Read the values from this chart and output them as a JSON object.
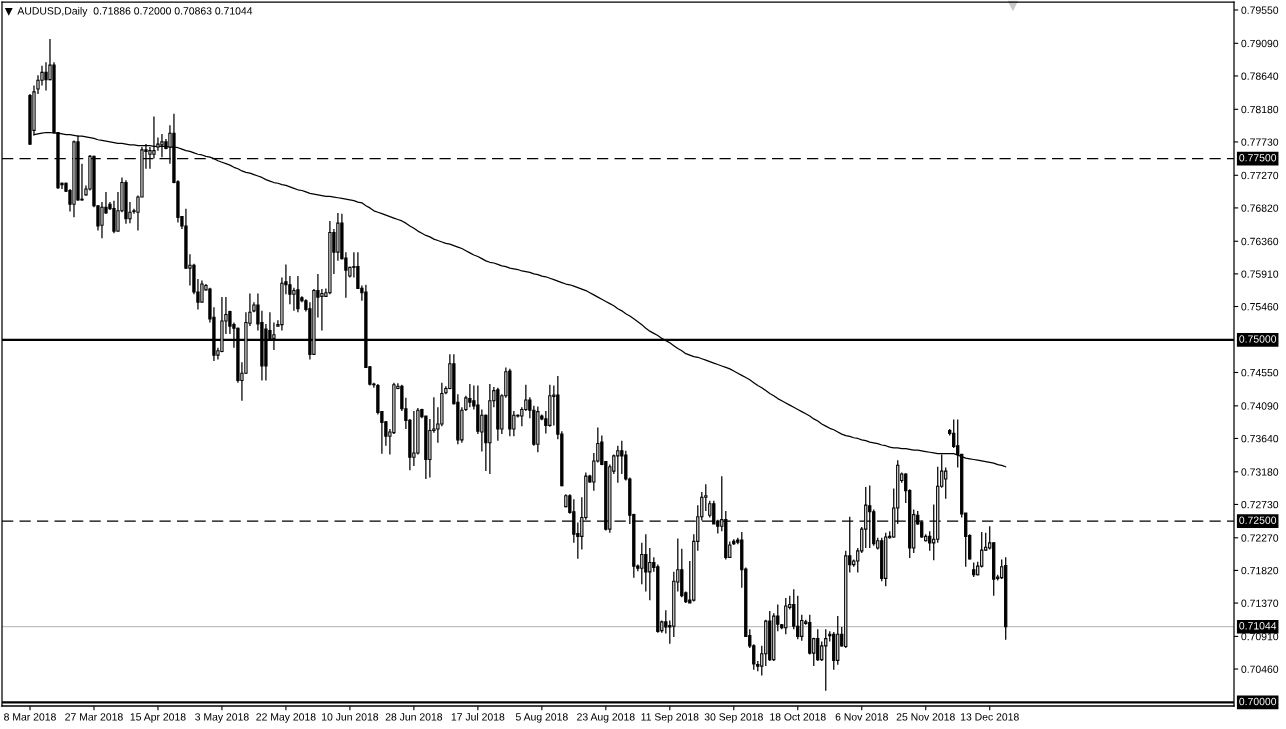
{
  "chart_data": {
    "type": "candlestick",
    "title": "AUDUSD,Daily  0.71886 0.72000 0.70863 0.71044",
    "categories": [
      "8 Mar 2018",
      null,
      null,
      null,
      null,
      null,
      null,
      null,
      null,
      null,
      null,
      null,
      null,
      null,
      null,
      null,
      "27 Mar 2018",
      null,
      null,
      null,
      null,
      null,
      null,
      null,
      null,
      null,
      null,
      null,
      null,
      null,
      null,
      null,
      "15 Apr 2018",
      null,
      null,
      null,
      null,
      null,
      null,
      null,
      null,
      null,
      null,
      null,
      null,
      null,
      null,
      null,
      "3 May 2018",
      null,
      null,
      null,
      null,
      null,
      null,
      null,
      null,
      null,
      null,
      null,
      null,
      null,
      null,
      null,
      "22 May 2018",
      null,
      null,
      null,
      null,
      null,
      null,
      null,
      null,
      null,
      null,
      null,
      null,
      null,
      null,
      null,
      "10 Jun 2018",
      null,
      null,
      null,
      null,
      null,
      null,
      null,
      null,
      null,
      null,
      null,
      null,
      null,
      null,
      null,
      "28 Jun 2018",
      null,
      null,
      null,
      null,
      null,
      null,
      null,
      null,
      null,
      null,
      null,
      null,
      null,
      null,
      null,
      "17 Jul 2018",
      null,
      null,
      null,
      null,
      null,
      null,
      null,
      null,
      null,
      null,
      null,
      null,
      null,
      null,
      null,
      "5 Aug 2018",
      null,
      null,
      null,
      null,
      null,
      null,
      null,
      null,
      null,
      null,
      null,
      null,
      null,
      null,
      null,
      "23 Aug 2018",
      null,
      null,
      null,
      null,
      null,
      null,
      null,
      null,
      null,
      null,
      null,
      null,
      null,
      null,
      null,
      "11 Sep 2018",
      null,
      null,
      null,
      null,
      null,
      null,
      null,
      null,
      null,
      null,
      null,
      null,
      null,
      null,
      null,
      "30 Sep 2018",
      null,
      null,
      null,
      null,
      null,
      null,
      null,
      null,
      null,
      null,
      null,
      null,
      null,
      null,
      null,
      "18 Oct 2018",
      null,
      null,
      null,
      null,
      null,
      null,
      null,
      null,
      null,
      null,
      null,
      null,
      null,
      null,
      null,
      "6 Nov 2018",
      null,
      null,
      null,
      null,
      null,
      null,
      null,
      null,
      null,
      null,
      null,
      null,
      null,
      null,
      null,
      "25 Nov 2018",
      null,
      null,
      null,
      null,
      null,
      null,
      null,
      null,
      null,
      null,
      null,
      null,
      null,
      null,
      null,
      "13 Dec 2018",
      null,
      null,
      null,
      null
    ],
    "ohlc": [
      [
        0.7837,
        0.7839,
        0.7769,
        0.777
      ],
      [
        0.7789,
        0.7851,
        0.7782,
        0.7842
      ],
      [
        0.7846,
        0.7865,
        0.7839,
        0.7858
      ],
      [
        0.7858,
        0.7878,
        0.7851,
        0.7869
      ],
      [
        0.7869,
        0.7883,
        0.7844,
        0.7859
      ],
      [
        0.7859,
        0.7915,
        0.7858,
        0.7879
      ],
      [
        0.7879,
        0.7883,
        0.7786,
        0.7786
      ],
      [
        0.7786,
        0.7786,
        0.7708,
        0.771
      ],
      [
        0.7716,
        0.7717,
        0.7708,
        0.7714
      ],
      [
        0.7716,
        0.7717,
        0.7704,
        0.7705
      ],
      [
        0.7706,
        0.7708,
        0.7677,
        0.7687
      ],
      [
        0.7687,
        0.7775,
        0.7669,
        0.7773
      ],
      [
        0.7773,
        0.7782,
        0.7692,
        0.7693
      ],
      [
        0.7694,
        0.7743,
        0.7692,
        0.7693
      ],
      [
        0.77,
        0.7713,
        0.7699,
        0.7708
      ],
      [
        0.7708,
        0.7755,
        0.7706,
        0.7753
      ],
      [
        0.7753,
        0.7754,
        0.7683,
        0.7685
      ],
      [
        0.7685,
        0.7685,
        0.7651,
        0.7657
      ],
      [
        0.7658,
        0.769,
        0.764,
        0.7683
      ],
      [
        0.7683,
        0.7704,
        0.7674,
        0.7675
      ],
      [
        0.7687,
        0.769,
        0.7679,
        0.7681
      ],
      [
        0.7681,
        0.7692,
        0.7647,
        0.765
      ],
      [
        0.765,
        0.7704,
        0.765,
        0.7678
      ],
      [
        0.7678,
        0.7724,
        0.7676,
        0.7717
      ],
      [
        0.7717,
        0.772,
        0.766,
        0.7667
      ],
      [
        0.7667,
        0.769,
        0.7661,
        0.7676
      ],
      [
        0.7677,
        0.7681,
        0.7674,
        0.7678
      ],
      [
        0.7676,
        0.7699,
        0.7651,
        0.7697
      ],
      [
        0.7697,
        0.7766,
        0.7697,
        0.7762
      ],
      [
        0.7762,
        0.777,
        0.7736,
        0.776
      ],
      [
        0.7756,
        0.7766,
        0.7736,
        0.7761
      ],
      [
        0.7756,
        0.7808,
        0.775,
        0.7761
      ],
      [
        0.7766,
        0.7779,
        0.7761,
        0.777
      ],
      [
        0.7769,
        0.7784,
        0.7752,
        0.7773
      ],
      [
        0.7773,
        0.7777,
        0.7763,
        0.7764
      ],
      [
        0.7766,
        0.7796,
        0.7743,
        0.7785
      ],
      [
        0.7785,
        0.7812,
        0.7716,
        0.7717
      ],
      [
        0.7718,
        0.772,
        0.7662,
        0.7669
      ],
      [
        0.767,
        0.7671,
        0.7653,
        0.7657
      ],
      [
        0.7657,
        0.7681,
        0.7598,
        0.7599
      ],
      [
        0.7599,
        0.7618,
        0.7575,
        0.7603
      ],
      [
        0.7603,
        0.7605,
        0.7563,
        0.7566
      ],
      [
        0.7566,
        0.7584,
        0.7542,
        0.7552
      ],
      [
        0.7552,
        0.7582,
        0.7552,
        0.7577
      ],
      [
        0.7569,
        0.7577,
        0.7568,
        0.7575
      ],
      [
        0.757,
        0.7572,
        0.7524,
        0.7529
      ],
      [
        0.7531,
        0.7545,
        0.7471,
        0.7479
      ],
      [
        0.7479,
        0.7489,
        0.7473,
        0.7485
      ],
      [
        0.7484,
        0.7559,
        0.7483,
        0.7526
      ],
      [
        0.7526,
        0.7559,
        0.7508,
        0.7535
      ],
      [
        0.7539,
        0.754,
        0.7508,
        0.7519
      ],
      [
        0.7521,
        0.7524,
        0.7489,
        0.7516
      ],
      [
        0.7516,
        0.7517,
        0.7441,
        0.7444
      ],
      [
        0.7444,
        0.7469,
        0.7416,
        0.7454
      ],
      [
        0.7454,
        0.7538,
        0.7453,
        0.7524
      ],
      [
        0.7523,
        0.7564,
        0.7519,
        0.7538
      ],
      [
        0.754,
        0.7552,
        0.7538,
        0.7548
      ],
      [
        0.7548,
        0.7564,
        0.7513,
        0.7522
      ],
      [
        0.7524,
        0.754,
        0.7444,
        0.7464
      ],
      [
        0.7515,
        0.7522,
        0.7444,
        0.7464
      ],
      [
        0.7513,
        0.7538,
        0.7499,
        0.7502
      ],
      [
        0.7502,
        0.7524,
        0.7486,
        0.7507
      ],
      [
        0.7519,
        0.7527,
        0.7519,
        0.7521
      ],
      [
        0.7521,
        0.7586,
        0.7513,
        0.7578
      ],
      [
        0.758,
        0.7604,
        0.7563,
        0.7576
      ],
      [
        0.7576,
        0.7588,
        0.7549,
        0.7563
      ],
      [
        0.7563,
        0.7572,
        0.754,
        0.7568
      ],
      [
        0.7569,
        0.7588,
        0.7538,
        0.7543
      ],
      [
        0.7558,
        0.756,
        0.7552,
        0.7554
      ],
      [
        0.7554,
        0.7556,
        0.7539,
        0.7542
      ],
      [
        0.7543,
        0.7552,
        0.7473,
        0.748
      ],
      [
        0.748,
        0.757,
        0.748,
        0.7568
      ],
      [
        0.7568,
        0.7591,
        0.7531,
        0.7559
      ],
      [
        0.756,
        0.757,
        0.7513,
        0.7564
      ],
      [
        0.756,
        0.7571,
        0.7559,
        0.7565
      ],
      [
        0.7565,
        0.7664,
        0.7563,
        0.7648
      ],
      [
        0.7648,
        0.7653,
        0.7591,
        0.7621
      ],
      [
        0.7621,
        0.7675,
        0.7609,
        0.7661
      ],
      [
        0.7661,
        0.7674,
        0.7611,
        0.7612
      ],
      [
        0.7613,
        0.7621,
        0.7558,
        0.7596
      ],
      [
        0.7588,
        0.7601,
        0.7586,
        0.76
      ],
      [
        0.76,
        0.7621,
        0.7586,
        0.7601
      ],
      [
        0.7601,
        0.7621,
        0.757,
        0.7571
      ],
      [
        0.7571,
        0.7575,
        0.7554,
        0.7565
      ],
      [
        0.7566,
        0.7576,
        0.7462,
        0.7462
      ],
      [
        0.7463,
        0.7464,
        0.7437,
        0.7439
      ],
      [
        0.7439,
        0.7441,
        0.7434,
        0.7438
      ],
      [
        0.7437,
        0.7439,
        0.7397,
        0.74
      ],
      [
        0.7401,
        0.7402,
        0.7343,
        0.7386
      ],
      [
        0.7387,
        0.7388,
        0.7354,
        0.7367
      ],
      [
        0.7367,
        0.7377,
        0.7342,
        0.7373
      ],
      [
        0.7372,
        0.7441,
        0.737,
        0.7438
      ],
      [
        0.7433,
        0.744,
        0.7432,
        0.7436
      ],
      [
        0.7436,
        0.7438,
        0.7402,
        0.7405
      ],
      [
        0.7405,
        0.742,
        0.7377,
        0.7389
      ],
      [
        0.7389,
        0.7391,
        0.732,
        0.7338
      ],
      [
        0.7338,
        0.7402,
        0.7326,
        0.7344
      ],
      [
        0.7344,
        0.7406,
        0.7342,
        0.7403
      ],
      [
        0.7404,
        0.7405,
        0.7392,
        0.7394
      ],
      [
        0.7395,
        0.7395,
        0.7308,
        0.7335
      ],
      [
        0.7335,
        0.7391,
        0.731,
        0.7375
      ],
      [
        0.7375,
        0.7421,
        0.7372,
        0.7377
      ],
      [
        0.7377,
        0.7407,
        0.7358,
        0.7384
      ],
      [
        0.7384,
        0.7441,
        0.7381,
        0.7426
      ],
      [
        0.7427,
        0.7436,
        0.7425,
        0.7433
      ],
      [
        0.7433,
        0.748,
        0.7432,
        0.7467
      ],
      [
        0.7467,
        0.748,
        0.7411,
        0.7412
      ],
      [
        0.7414,
        0.7425,
        0.7356,
        0.7362
      ],
      [
        0.7362,
        0.7407,
        0.7358,
        0.7403
      ],
      [
        0.7404,
        0.7423,
        0.7402,
        0.742
      ],
      [
        0.7419,
        0.7439,
        0.7407,
        0.7414
      ],
      [
        0.7416,
        0.7437,
        0.7404,
        0.7409
      ],
      [
        0.741,
        0.7437,
        0.737,
        0.7374
      ],
      [
        0.7373,
        0.7404,
        0.7346,
        0.7396
      ],
      [
        0.7396,
        0.7397,
        0.7319,
        0.7358
      ],
      [
        0.7358,
        0.7439,
        0.7315,
        0.7416
      ],
      [
        0.7416,
        0.7435,
        0.7407,
        0.743
      ],
      [
        0.7431,
        0.7434,
        0.7361,
        0.7377
      ],
      [
        0.7377,
        0.7425,
        0.737,
        0.7423
      ],
      [
        0.7423,
        0.7462,
        0.742,
        0.7456
      ],
      [
        0.7457,
        0.746,
        0.7367,
        0.7377
      ],
      [
        0.7377,
        0.7402,
        0.7367,
        0.7396
      ],
      [
        0.7395,
        0.7397,
        0.7393,
        0.7396
      ],
      [
        0.7395,
        0.7407,
        0.7381,
        0.7404
      ],
      [
        0.7404,
        0.7438,
        0.7402,
        0.7417
      ],
      [
        0.7417,
        0.7421,
        0.7392,
        0.7403
      ],
      [
        0.7403,
        0.7409,
        0.7354,
        0.7356
      ],
      [
        0.7356,
        0.7408,
        0.7345,
        0.7401
      ],
      [
        0.7395,
        0.7397,
        0.7389,
        0.7391
      ],
      [
        0.7391,
        0.7402,
        0.7371,
        0.7382
      ],
      [
        0.7382,
        0.7438,
        0.738,
        0.7423
      ],
      [
        0.7422,
        0.7437,
        0.7382,
        0.7424
      ],
      [
        0.7424,
        0.745,
        0.7363,
        0.737
      ],
      [
        0.737,
        0.7374,
        0.7298,
        0.7299
      ],
      [
        0.727,
        0.7287,
        0.7269,
        0.7285
      ],
      [
        0.7285,
        0.7287,
        0.726,
        0.7262
      ],
      [
        0.7263,
        0.728,
        0.722,
        0.7232
      ],
      [
        0.7233,
        0.7248,
        0.7198,
        0.7229
      ],
      [
        0.7229,
        0.7283,
        0.7211,
        0.7255
      ],
      [
        0.7255,
        0.7317,
        0.7252,
        0.7312
      ],
      [
        0.7312,
        0.7314,
        0.7303,
        0.7304
      ],
      [
        0.7304,
        0.7344,
        0.7292,
        0.7333
      ],
      [
        0.7333,
        0.7379,
        0.7331,
        0.7357
      ],
      [
        0.7359,
        0.7368,
        0.7327,
        0.7328
      ],
      [
        0.7332,
        0.7333,
        0.7237,
        0.7239
      ],
      [
        0.7239,
        0.7328,
        0.7234,
        0.7325
      ],
      [
        0.7319,
        0.7342,
        0.7315,
        0.734
      ],
      [
        0.734,
        0.7354,
        0.7303,
        0.7347
      ],
      [
        0.7347,
        0.7361,
        0.7315,
        0.734
      ],
      [
        0.7341,
        0.7347,
        0.7306,
        0.7308
      ],
      [
        0.7308,
        0.731,
        0.7246,
        0.7258
      ],
      [
        0.7259,
        0.726,
        0.7172,
        0.7188
      ],
      [
        0.7188,
        0.719,
        0.7181,
        0.7185
      ],
      [
        0.7185,
        0.722,
        0.7163,
        0.7204
      ],
      [
        0.7204,
        0.7232,
        0.7153,
        0.718
      ],
      [
        0.718,
        0.7213,
        0.7141,
        0.7193
      ],
      [
        0.7193,
        0.72,
        0.718,
        0.7186
      ],
      [
        0.7187,
        0.719,
        0.7096,
        0.7098
      ],
      [
        0.7099,
        0.7113,
        0.7096,
        0.7111
      ],
      [
        0.7111,
        0.7127,
        0.7095,
        0.7104
      ],
      [
        0.7106,
        0.7113,
        0.7081,
        0.7104
      ],
      [
        0.7105,
        0.718,
        0.709,
        0.7167
      ],
      [
        0.7166,
        0.7226,
        0.7153,
        0.7183
      ],
      [
        0.7183,
        0.7212,
        0.7145,
        0.7147
      ],
      [
        0.7151,
        0.7153,
        0.7137,
        0.7139
      ],
      [
        0.7141,
        0.7195,
        0.7137,
        0.7137
      ],
      [
        0.7141,
        0.7232,
        0.7139,
        0.7222
      ],
      [
        0.7222,
        0.7272,
        0.7209,
        0.7256
      ],
      [
        0.7256,
        0.729,
        0.7251,
        0.7283
      ],
      [
        0.7283,
        0.7301,
        0.7264,
        0.7285
      ],
      [
        0.7258,
        0.7278,
        0.7255,
        0.7274
      ],
      [
        0.7274,
        0.7278,
        0.7246,
        0.7246
      ],
      [
        0.725,
        0.7252,
        0.7233,
        0.7243
      ],
      [
        0.7243,
        0.7312,
        0.7236,
        0.7252
      ],
      [
        0.7252,
        0.7264,
        0.7197,
        0.72
      ],
      [
        0.72,
        0.7222,
        0.7199,
        0.7217
      ],
      [
        0.7222,
        0.7225,
        0.7217,
        0.7219
      ],
      [
        0.7224,
        0.7227,
        0.7218,
        0.7221
      ],
      [
        0.7224,
        0.7235,
        0.7158,
        0.7183
      ],
      [
        0.7184,
        0.7186,
        0.709,
        0.7091
      ],
      [
        0.7092,
        0.7101,
        0.7075,
        0.7078
      ],
      [
        0.7078,
        0.708,
        0.7045,
        0.7053
      ],
      [
        0.7052,
        0.7057,
        0.7043,
        0.705
      ],
      [
        0.705,
        0.7078,
        0.7037,
        0.7067
      ],
      [
        0.7067,
        0.7114,
        0.705,
        0.7112
      ],
      [
        0.7112,
        0.7126,
        0.7057,
        0.7059
      ],
      [
        0.7059,
        0.7123,
        0.7057,
        0.7119
      ],
      [
        0.7119,
        0.7135,
        0.7098,
        0.7108
      ],
      [
        0.7107,
        0.7108,
        0.7101,
        0.7103
      ],
      [
        0.7103,
        0.7144,
        0.7094,
        0.7133
      ],
      [
        0.7131,
        0.7147,
        0.7128,
        0.7135
      ],
      [
        0.7135,
        0.7156,
        0.7101,
        0.7105
      ],
      [
        0.7105,
        0.7147,
        0.7087,
        0.7091
      ],
      [
        0.7091,
        0.7121,
        0.7085,
        0.7113
      ],
      [
        0.7109,
        0.7114,
        0.7107,
        0.7111
      ],
      [
        0.711,
        0.7121,
        0.7066,
        0.7068
      ],
      [
        0.7068,
        0.7089,
        0.705,
        0.7088
      ],
      [
        0.7088,
        0.7101,
        0.7057,
        0.7059
      ],
      [
        0.7059,
        0.7084,
        0.7057,
        0.7078
      ],
      [
        0.7078,
        0.7101,
        0.7016,
        0.7088
      ],
      [
        0.7092,
        0.7098,
        0.7084,
        0.7094
      ],
      [
        0.7094,
        0.7097,
        0.7045,
        0.7058
      ],
      [
        0.7058,
        0.7119,
        0.7052,
        0.7094
      ],
      [
        0.7094,
        0.7104,
        0.7077,
        0.7078
      ],
      [
        0.7077,
        0.7209,
        0.7075,
        0.7202
      ],
      [
        0.7202,
        0.7256,
        0.7179,
        0.719
      ],
      [
        0.719,
        0.7197,
        0.7187,
        0.7195
      ],
      [
        0.7195,
        0.7213,
        0.7179,
        0.7209
      ],
      [
        0.7209,
        0.7242,
        0.7206,
        0.7239
      ],
      [
        0.7239,
        0.7297,
        0.7213,
        0.7272
      ],
      [
        0.7271,
        0.7299,
        0.7213,
        0.7263
      ],
      [
        0.7263,
        0.7266,
        0.7216,
        0.7219
      ],
      [
        0.7213,
        0.7227,
        0.7211,
        0.7223
      ],
      [
        0.7223,
        0.7227,
        0.7167,
        0.7171
      ],
      [
        0.7171,
        0.7234,
        0.716,
        0.7228
      ],
      [
        0.7227,
        0.7236,
        0.7226,
        0.7229
      ],
      [
        0.7228,
        0.7295,
        0.7227,
        0.7268
      ],
      [
        0.7268,
        0.7334,
        0.7246,
        0.7327
      ],
      [
        0.7306,
        0.7317,
        0.7303,
        0.7315
      ],
      [
        0.7315,
        0.7316,
        0.7275,
        0.7292
      ],
      [
        0.7292,
        0.7294,
        0.7199,
        0.7213
      ],
      [
        0.7213,
        0.7266,
        0.7206,
        0.7259
      ],
      [
        0.7258,
        0.7264,
        0.7245,
        0.7246
      ],
      [
        0.7248,
        0.7251,
        0.7227,
        0.7228
      ],
      [
        0.7223,
        0.7232,
        0.7222,
        0.7229
      ],
      [
        0.7229,
        0.7236,
        0.7209,
        0.722
      ],
      [
        0.722,
        0.7273,
        0.7196,
        0.7225
      ],
      [
        0.7225,
        0.7325,
        0.722,
        0.7298
      ],
      [
        0.7298,
        0.7342,
        0.7296,
        0.7319
      ],
      [
        0.7308,
        0.7324,
        0.7281,
        0.7319
      ],
      [
        0.7375,
        0.7377,
        0.7368,
        0.7371
      ],
      [
        0.7371,
        0.739,
        0.7351,
        0.7353
      ],
      [
        0.7354,
        0.739,
        0.7324,
        0.7342
      ],
      [
        0.7342,
        0.7342,
        0.7255,
        0.726
      ],
      [
        0.7261,
        0.7261,
        0.7187,
        0.7229
      ],
      [
        0.723,
        0.7232,
        0.7197,
        0.7198
      ],
      [
        0.7183,
        0.7193,
        0.7173,
        0.7176
      ],
      [
        0.7176,
        0.7194,
        0.7175,
        0.7188
      ],
      [
        0.7188,
        0.7235,
        0.7186,
        0.721
      ],
      [
        0.721,
        0.7234,
        0.7209,
        0.7214
      ],
      [
        0.7213,
        0.7243,
        0.7211,
        0.722
      ],
      [
        0.722,
        0.7221,
        0.7147,
        0.717
      ],
      [
        0.7171,
        0.7176,
        0.7168,
        0.7173
      ],
      [
        0.7172,
        0.7197,
        0.717,
        0.7187
      ],
      [
        0.71886,
        0.72,
        0.70863,
        0.71044
      ]
    ],
    "series": [
      {
        "type": "line",
        "color": "#000000",
        "values": [
          null,
          0.7783,
          0.7784,
          0.7785,
          0.7786,
          0.7786,
          0.7785,
          0.7785,
          0.7784,
          0.7783,
          0.7783,
          0.7782,
          0.7781,
          0.7781,
          0.778,
          0.7779,
          0.7778,
          0.7776,
          0.7775,
          0.7774,
          0.7773,
          0.7772,
          0.7771,
          0.7771,
          0.777,
          0.7769,
          0.7769,
          0.7768,
          0.7768,
          0.7768,
          0.7768,
          0.7767,
          0.7767,
          0.7767,
          0.7767,
          0.7766,
          0.7766,
          0.7765,
          0.7763,
          0.7761,
          0.776,
          0.7758,
          0.7756,
          0.7755,
          0.7753,
          0.7752,
          0.775,
          0.7747,
          0.7745,
          0.7743,
          0.7741,
          0.7738,
          0.7736,
          0.7733,
          0.7731,
          0.773,
          0.7728,
          0.7726,
          0.7724,
          0.7721,
          0.7719,
          0.7717,
          0.7716,
          0.7714,
          0.7713,
          0.7711,
          0.7709,
          0.7707,
          0.7706,
          0.7704,
          0.7702,
          0.7701,
          0.77,
          0.7699,
          0.7698,
          0.7698,
          0.7697,
          0.7696,
          0.7695,
          0.7694,
          0.7693,
          0.7692,
          0.769,
          0.7689,
          0.7685,
          0.7682,
          0.7678,
          0.7676,
          0.7674,
          0.7672,
          0.767,
          0.7668,
          0.7666,
          0.7664,
          0.7661,
          0.7657,
          0.7654,
          0.765,
          0.7647,
          0.7644,
          0.7642,
          0.7639,
          0.7637,
          0.7635,
          0.7633,
          0.7632,
          0.763,
          0.7628,
          0.7626,
          0.7623,
          0.762,
          0.7617,
          0.7615,
          0.7612,
          0.7609,
          0.7607,
          0.7606,
          0.7604,
          0.7602,
          0.7601,
          0.7599,
          0.7598,
          0.7597,
          0.7595,
          0.7594,
          0.7593,
          0.7591,
          0.759,
          0.7588,
          0.7587,
          0.7585,
          0.7583,
          0.7581,
          0.7579,
          0.7577,
          0.7576,
          0.7574,
          0.7572,
          0.757,
          0.7568,
          0.7565,
          0.7562,
          0.7559,
          0.7556,
          0.7553,
          0.755,
          0.7547,
          0.7543,
          0.754,
          0.7536,
          0.7533,
          0.7529,
          0.7525,
          0.7521,
          0.7516,
          0.7512,
          0.7509,
          0.7506,
          0.7502,
          0.7499,
          0.7496,
          0.7492,
          0.7488,
          0.7485,
          0.7481,
          0.7479,
          0.7477,
          0.7476,
          0.7474,
          0.7472,
          0.747,
          0.7468,
          0.7466,
          0.7464,
          0.7462,
          0.746,
          0.7457,
          0.7454,
          0.7451,
          0.7448,
          0.7445,
          0.7441,
          0.7437,
          0.7434,
          0.743,
          0.7426,
          0.7423,
          0.7419,
          0.7416,
          0.7413,
          0.741,
          0.7407,
          0.7404,
          0.7401,
          0.7398,
          0.7395,
          0.7391,
          0.7388,
          0.7384,
          0.7381,
          0.7378,
          0.7376,
          0.7373,
          0.737,
          0.7368,
          0.7367,
          0.7365,
          0.7364,
          0.7362,
          0.7361,
          0.7359,
          0.7358,
          0.7357,
          0.7355,
          0.7354,
          0.7352,
          0.7351,
          0.7351,
          0.735,
          0.735,
          0.7349,
          0.7348,
          0.7348,
          0.7347,
          0.7346,
          0.7345,
          0.7344,
          0.7343,
          0.7343,
          0.7343,
          0.7343,
          0.7343,
          0.7341,
          0.7339,
          0.7337,
          0.7336,
          0.7335,
          0.7334,
          0.7333,
          0.7332,
          0.7331,
          0.733,
          0.7328,
          0.7327,
          0.7325
        ]
      }
    ],
    "ylim": [
      0.6995,
      0.7966
    ],
    "yticks": [
      {
        "value": 0.7955,
        "label": "0.79550"
      },
      {
        "value": 0.7909,
        "label": "0.79090"
      },
      {
        "value": 0.7864,
        "label": "0.78640"
      },
      {
        "value": 0.7818,
        "label": "0.78180"
      },
      {
        "value": 0.7773,
        "label": "0.77730"
      },
      {
        "value": 0.7727,
        "label": "0.77270"
      },
      {
        "value": 0.7682,
        "label": "0.76820"
      },
      {
        "value": 0.7636,
        "label": "0.76360"
      },
      {
        "value": 0.7591,
        "label": "0.75910"
      },
      {
        "value": 0.7546,
        "label": "0.75460"
      },
      {
        "value": 0.7455,
        "label": "0.74550"
      },
      {
        "value": 0.7409,
        "label": "0.74090"
      },
      {
        "value": 0.7364,
        "label": "0.73640"
      },
      {
        "value": 0.7318,
        "label": "0.73180"
      },
      {
        "value": 0.7273,
        "label": "0.72730"
      },
      {
        "value": 0.7227,
        "label": "0.72270"
      },
      {
        "value": 0.7182,
        "label": "0.71820"
      },
      {
        "value": 0.7137,
        "label": "0.71370"
      },
      {
        "value": 0.7091,
        "label": "0.70910"
      },
      {
        "value": 0.7046,
        "label": "0.70460"
      }
    ],
    "ref_lines": [
      {
        "axis": "y",
        "value": 0.775,
        "label": "0.77500",
        "line_style": "dashed",
        "color": "#000000"
      },
      {
        "axis": "y",
        "value": 0.75,
        "label": "0.75000",
        "line_style": "solid",
        "color": "#000000"
      },
      {
        "axis": "y",
        "value": 0.725,
        "label": "0.72500",
        "line_style": "dashed",
        "color": "#000000"
      },
      {
        "axis": "y",
        "value": 0.71044,
        "label": "0.71044",
        "line_style": "solid",
        "color": "#c0c0c0"
      },
      {
        "axis": "y",
        "value": 0.7,
        "label": "0.70000",
        "line_style": "solid",
        "color": "#000000"
      }
    ]
  }
}
